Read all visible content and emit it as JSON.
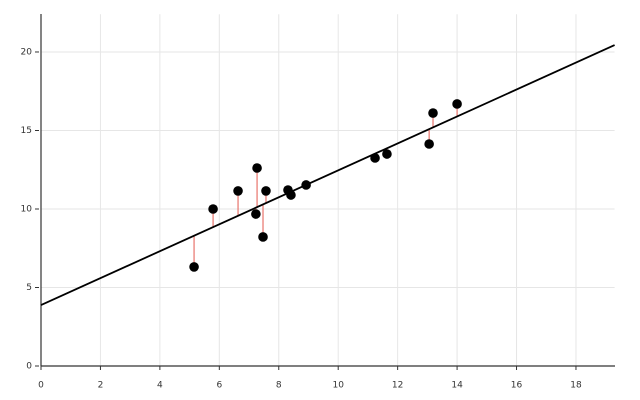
{
  "chart_data": {
    "type": "scatter",
    "x": [
      5.15,
      5.79,
      6.63,
      7.27,
      7.23,
      7.47,
      7.57,
      8.31,
      8.41,
      8.92,
      11.24,
      11.64,
      13.06,
      13.19,
      14.0
    ],
    "series": [
      {
        "color": "#000000",
        "values": [
          6.31,
          10.0,
          11.15,
          12.61,
          9.68,
          8.22,
          11.15,
          11.21,
          10.89,
          11.53,
          13.25,
          13.5,
          14.14,
          16.11,
          16.69
        ]
      }
    ],
    "regression": {
      "intercept": 3.88,
      "slope": 0.858,
      "color": "#000000",
      "residual_color": "#e8736b"
    },
    "xlim": [
      0,
      19.3
    ],
    "ylim": [
      0,
      22.4
    ],
    "xticks": [
      0,
      2,
      4,
      6,
      8,
      10,
      12,
      14,
      16,
      18
    ],
    "yticks": [
      0,
      5,
      10,
      15,
      20
    ],
    "grid": true
  }
}
